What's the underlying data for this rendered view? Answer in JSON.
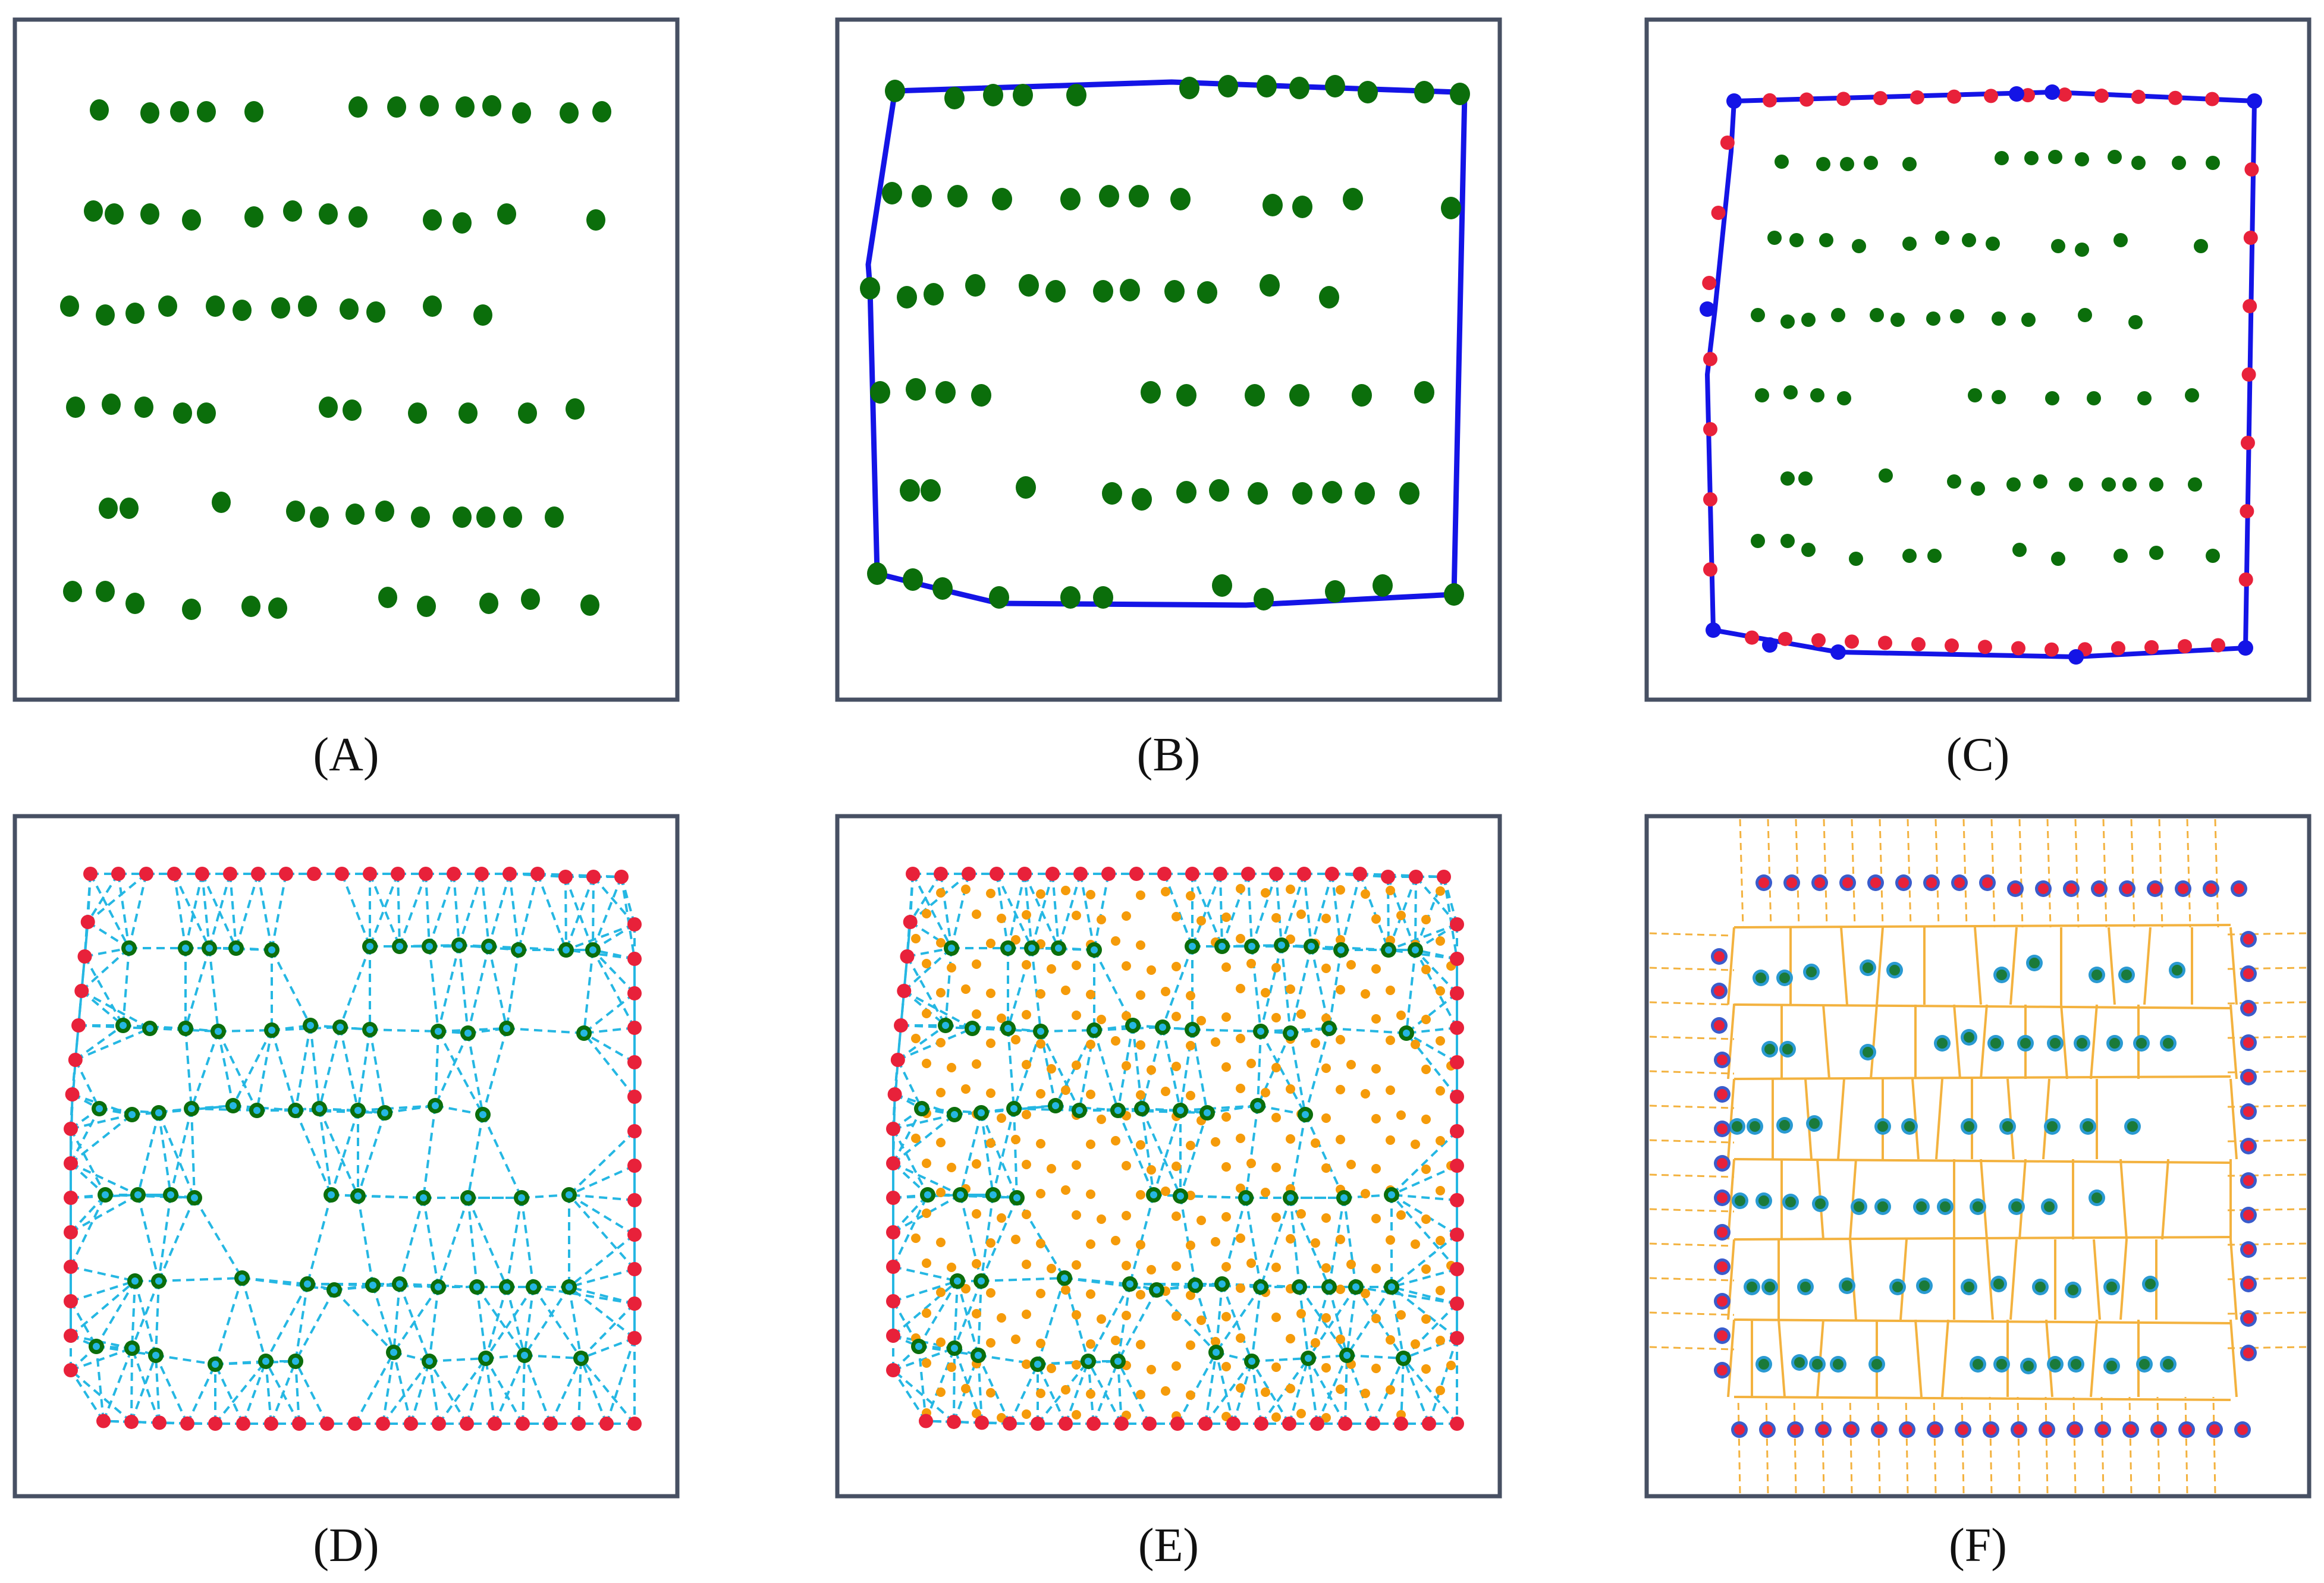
{
  "figure": {
    "panels": [
      {
        "id": "A",
        "caption": "(A)",
        "content": "plant-points"
      },
      {
        "id": "B",
        "caption": "(B)",
        "content": "convex-hull"
      },
      {
        "id": "C",
        "caption": "(C)",
        "content": "boundary-points"
      },
      {
        "id": "D",
        "caption": "(D)",
        "content": "delaunay-triangulation"
      },
      {
        "id": "E",
        "caption": "(E)",
        "content": "triangle-centroids"
      },
      {
        "id": "F",
        "caption": "(F)",
        "content": "voronoi-cells"
      }
    ]
  },
  "colors": {
    "frame": "#475063",
    "plant": "#0b6e0b",
    "hull": "#1414e6",
    "boundary_point": "#e8213a",
    "hull_vertex": "#1414e6",
    "triangulation": "#25b7e3",
    "centroid": "#f59b0a",
    "voronoi": "#f3b23f",
    "cell_plant_fill": "#1a7a3a",
    "cell_plant_ring": "#2a9ad2",
    "outer_ring": "#3a5ccc"
  }
}
